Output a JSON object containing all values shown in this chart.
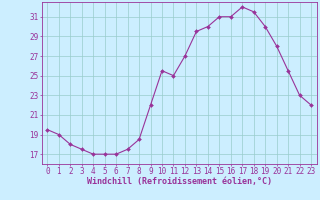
{
  "x": [
    0,
    1,
    2,
    3,
    4,
    5,
    6,
    7,
    8,
    9,
    10,
    11,
    12,
    13,
    14,
    15,
    16,
    17,
    18,
    19,
    20,
    21,
    22,
    23
  ],
  "y": [
    19.5,
    19.0,
    18.0,
    17.5,
    17.0,
    17.0,
    17.0,
    17.5,
    18.5,
    22.0,
    25.5,
    25.0,
    27.0,
    29.5,
    30.0,
    31.0,
    31.0,
    32.0,
    31.5,
    30.0,
    28.0,
    25.5,
    23.0,
    22.0
  ],
  "line_color": "#993399",
  "marker": "D",
  "marker_size": 2.0,
  "bg_color": "#cceeff",
  "grid_color": "#99cccc",
  "tick_color": "#993399",
  "label_color": "#993399",
  "xlabel": "Windchill (Refroidissement éolien,°C)",
  "xlim": [
    -0.5,
    23.5
  ],
  "ylim": [
    16.0,
    32.5
  ],
  "yticks": [
    17,
    19,
    21,
    23,
    25,
    27,
    29,
    31
  ],
  "xticks": [
    0,
    1,
    2,
    3,
    4,
    5,
    6,
    7,
    8,
    9,
    10,
    11,
    12,
    13,
    14,
    15,
    16,
    17,
    18,
    19,
    20,
    21,
    22,
    23
  ],
  "axis_fontsize": 5.5,
  "tick_fontsize": 5.5,
  "xlabel_fontsize": 6.0
}
